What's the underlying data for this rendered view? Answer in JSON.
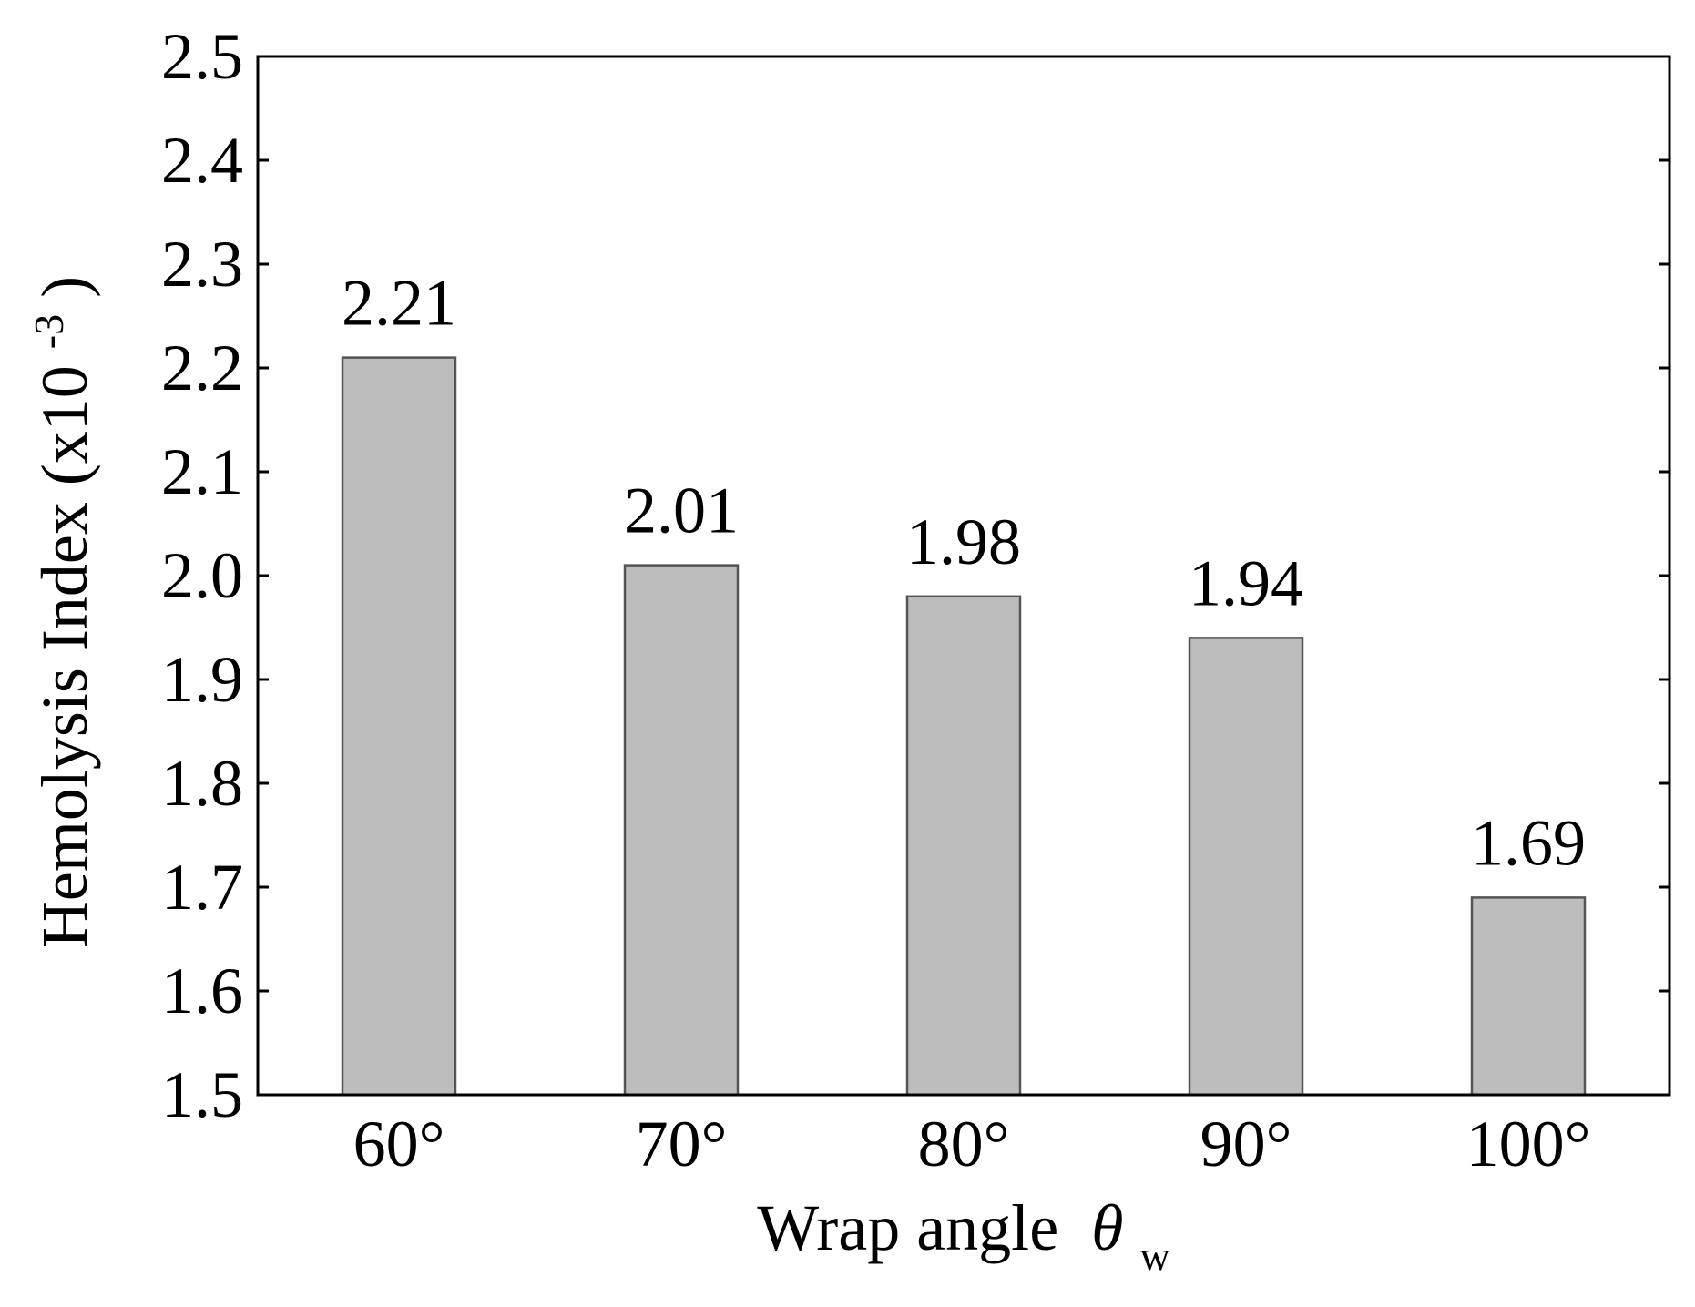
{
  "chart_data": {
    "type": "bar",
    "categories": [
      "60°",
      "70°",
      "80°",
      "90°",
      "100°"
    ],
    "values": [
      2.21,
      2.01,
      1.98,
      1.94,
      1.69
    ],
    "data_labels": [
      "2.21",
      "2.01",
      "1.98",
      "1.94",
      "1.69"
    ],
    "title": "",
    "xlabel": "Wrap angle",
    "xlabel_symbol": "θ",
    "xlabel_subscript": "w",
    "ylabel": "Hemolysis Index (x10",
    "ylabel_superscript": "-3",
    "ylabel_suffix": ")",
    "ylim": [
      1.5,
      2.5
    ],
    "yticks": [
      "1.5",
      "1.6",
      "1.7",
      "1.8",
      "1.9",
      "2.0",
      "2.1",
      "2.2",
      "2.3",
      "2.4",
      "2.5"
    ],
    "grid": false,
    "legend": "none",
    "bar_color": "#bdbdbd",
    "bar_edge_color": "#555555"
  }
}
